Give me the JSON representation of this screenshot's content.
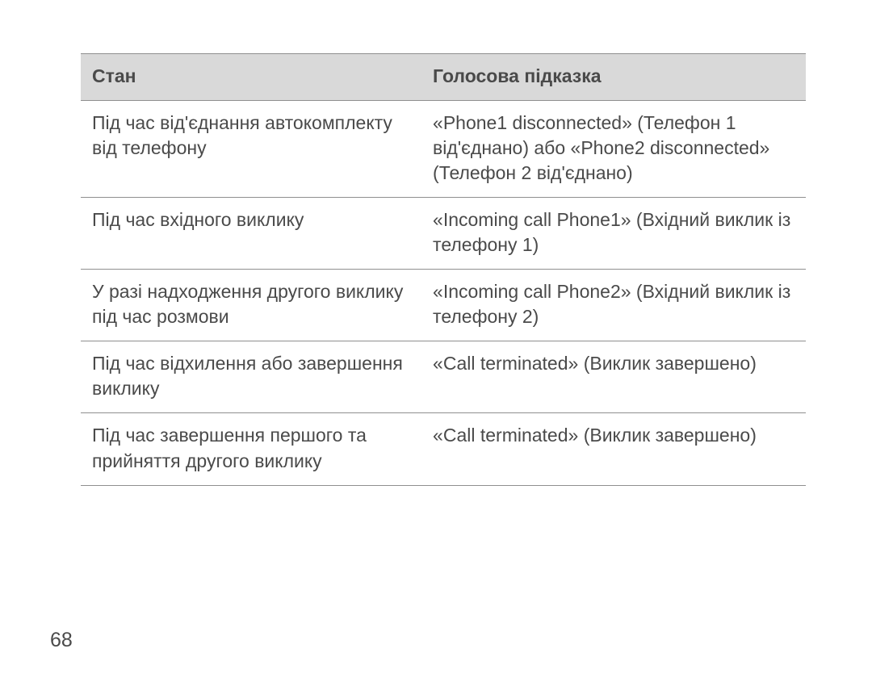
{
  "page_number": "68",
  "table": {
    "header_bg": "#d9d9d9",
    "border_color": "#8f8f8f",
    "text_color": "#4a4a4a",
    "font_size": 23,
    "columns": [
      {
        "label": "Стан",
        "width_pct": 47
      },
      {
        "label": "Голосова підказка",
        "width_pct": 53
      }
    ],
    "rows": [
      {
        "state": "Під час від'єднання автокомплекту від телефону",
        "prompt": "«Phone1 disconnected» (Телефон 1 від'єднано) або «Phone2 disconnected» (Телефон 2 від'єднано)"
      },
      {
        "state": "Під час вхідного виклику",
        "prompt": "«Incoming call Phone1» (Вхідний виклик із телефону 1)"
      },
      {
        "state": "У разі надходження другого виклику під час розмови",
        "prompt": "«Incoming call Phone2» (Вхідний виклик із телефону 2)"
      },
      {
        "state": "Під час відхилення або завершення виклику",
        "prompt": "«Call terminated» (Виклик завершено)"
      },
      {
        "state": "Під час завершення першого та прийняття другого виклику",
        "prompt": "«Call terminated» (Виклик завершено)"
      }
    ]
  }
}
